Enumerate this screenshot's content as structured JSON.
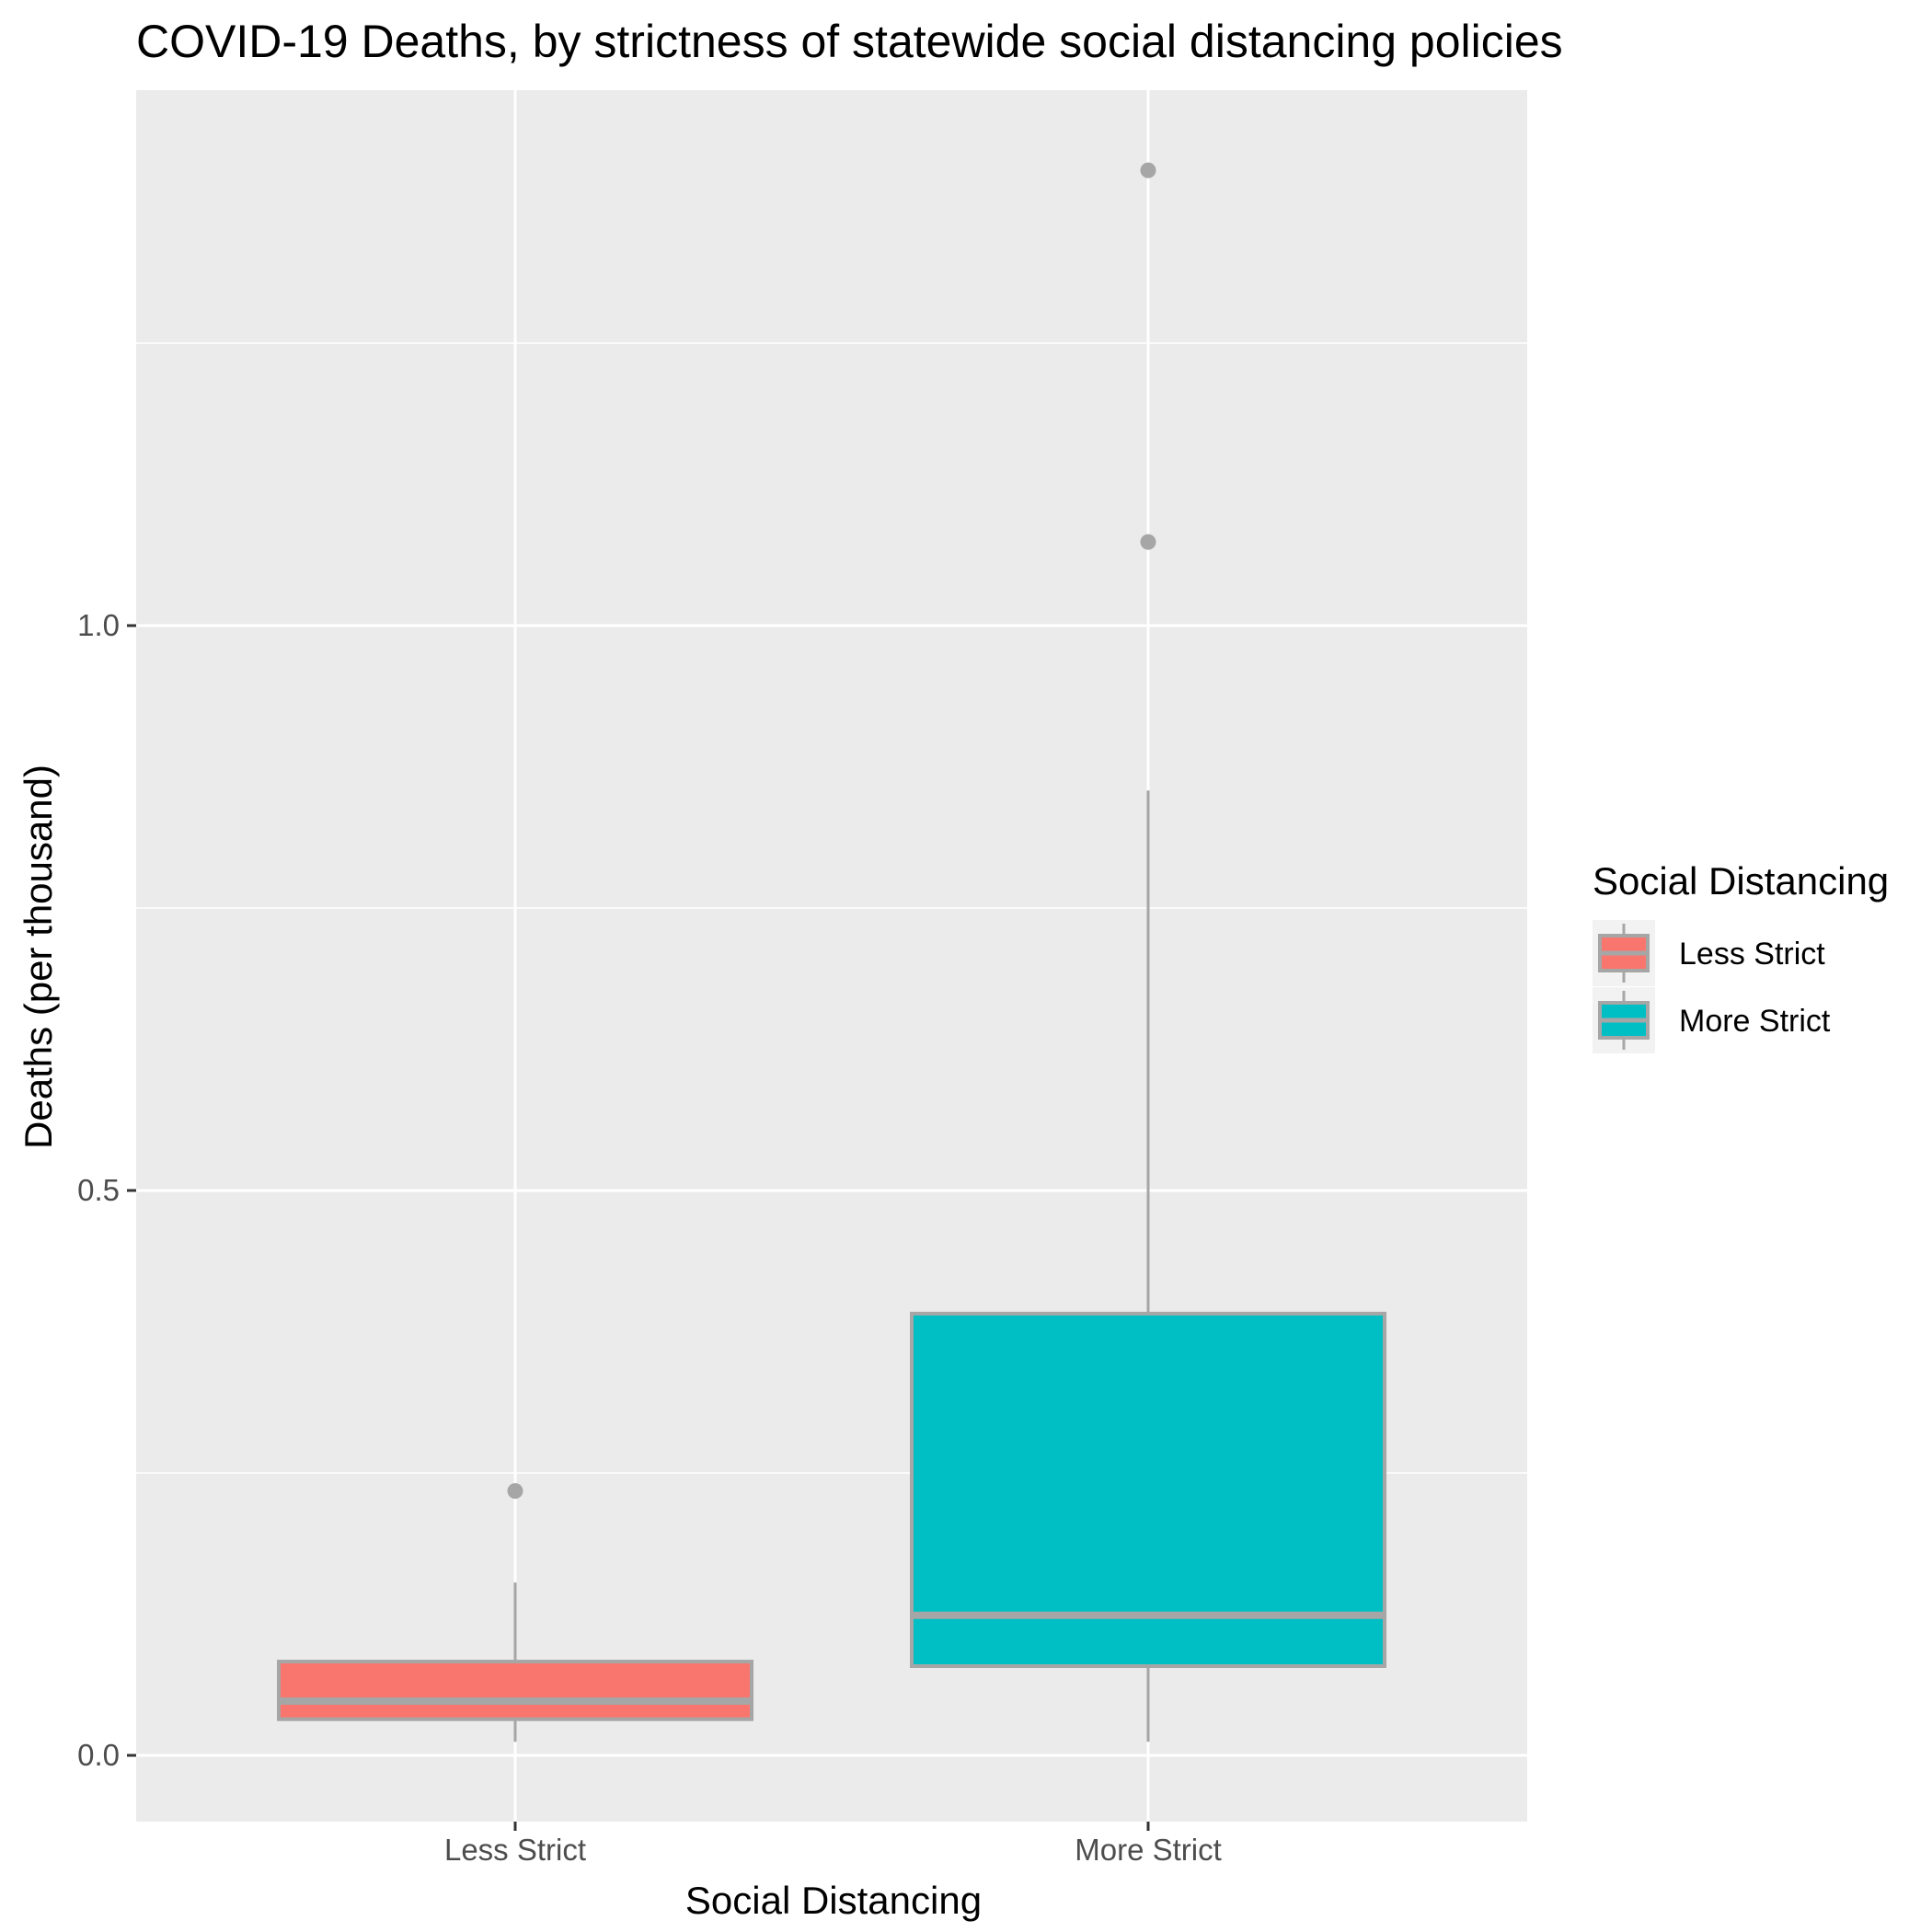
{
  "chart_data": {
    "type": "boxplot",
    "title": "COVID-19 Deaths, by strictness of statewide social distancing policies",
    "xlabel": "Social Distancing",
    "ylabel": "Deaths (per thousand)",
    "ylim": [
      -0.05,
      1.5
    ],
    "yticks": [
      0.0,
      0.5,
      1.0
    ],
    "ytick_labels": [
      "0.0",
      "0.5",
      "1.0"
    ],
    "grid": true,
    "categories": [
      "Less Strict",
      "More Strict"
    ],
    "boxes": [
      {
        "name": "Less Strict",
        "color": "#F8766D",
        "whisker_low": 0.012,
        "q1": 0.032,
        "median": 0.048,
        "q3": 0.083,
        "whisker_high": 0.153,
        "outliers": [
          0.234
        ]
      },
      {
        "name": "More Strict",
        "color": "#00BFC4",
        "whisker_low": 0.012,
        "q1": 0.079,
        "median": 0.124,
        "q3": 0.391,
        "whisker_high": 0.854,
        "outliers": [
          1.074,
          1.403
        ]
      }
    ],
    "legend": {
      "title": "Social Distancing",
      "position": "right",
      "items": [
        "Less Strict",
        "More Strict"
      ]
    }
  },
  "colors": {
    "panel": "#EBEBEB",
    "grid": "#FFFFFF",
    "box_line": "#A6A6A6",
    "outlier": "#A6A6A6"
  }
}
